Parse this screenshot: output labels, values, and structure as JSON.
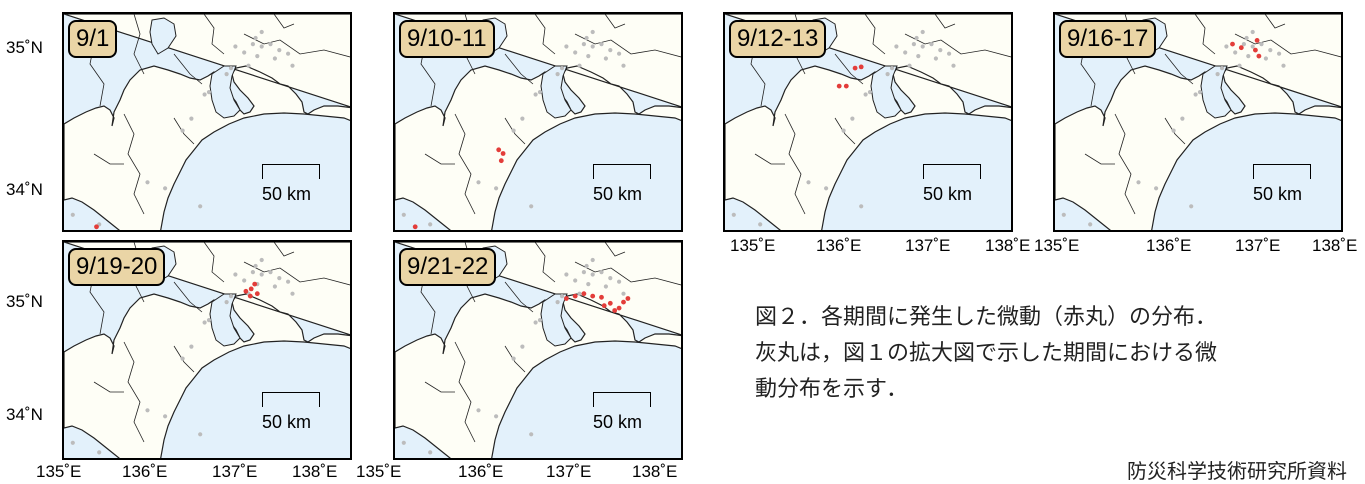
{
  "panels": [
    {
      "date": "9/1",
      "red": [
        [
          135.37,
          33.88
        ]
      ]
    },
    {
      "date": "9/10-11",
      "red": [
        [
          135.23,
          33.88
        ],
        [
          136.23,
          34.49
        ],
        [
          136.21,
          34.43
        ],
        [
          136.18,
          34.52
        ]
      ]
    },
    {
      "date": "9/12-13",
      "red": [
        [
          136.3,
          35.05
        ],
        [
          136.38,
          35.05
        ],
        [
          136.48,
          35.2
        ],
        [
          136.55,
          35.21
        ]
      ]
    },
    {
      "date": "9/16-17",
      "red": [
        [
          137.02,
          35.4
        ],
        [
          137.12,
          35.37
        ],
        [
          137.3,
          35.43
        ],
        [
          137.28,
          35.35
        ],
        [
          137.32,
          35.3
        ]
      ]
    },
    {
      "date": "9/19-20",
      "red": [
        [
          137.07,
          35.24
        ],
        [
          137.12,
          35.2
        ],
        [
          137.17,
          35.3
        ],
        [
          137.2,
          35.22
        ],
        [
          137.13,
          35.26
        ]
      ]
    },
    {
      "date": "9/21-22",
      "red": [
        [
          136.95,
          35.18
        ],
        [
          137.05,
          35.2
        ],
        [
          137.15,
          35.22
        ],
        [
          137.25,
          35.2
        ],
        [
          137.35,
          35.19
        ],
        [
          137.45,
          35.14
        ],
        [
          137.55,
          35.1
        ],
        [
          137.6,
          35.15
        ],
        [
          137.5,
          35.08
        ],
        [
          137.38,
          35.12
        ],
        [
          137.65,
          35.18
        ]
      ]
    }
  ],
  "background_tremors": [
    [
      136.95,
      35.38
    ],
    [
      137.05,
      35.33
    ],
    [
      137.15,
      35.4
    ],
    [
      137.25,
      35.38
    ],
    [
      137.35,
      35.4
    ],
    [
      137.45,
      35.35
    ],
    [
      137.55,
      35.32
    ],
    [
      137.6,
      35.22
    ],
    [
      137.4,
      35.28
    ],
    [
      137.2,
      35.3
    ],
    [
      137.1,
      35.22
    ],
    [
      136.9,
      35.2
    ],
    [
      136.85,
      35.15
    ],
    [
      136.35,
      34.68
    ],
    [
      136.45,
      34.78
    ],
    [
      136.6,
      34.98
    ],
    [
      136.65,
      35.0
    ],
    [
      135.95,
      34.25
    ],
    [
      135.4,
      33.9
    ],
    [
      135.1,
      33.98
    ],
    [
      136.15,
      34.2
    ],
    [
      136.55,
      34.05
    ],
    [
      137.25,
      35.5
    ],
    [
      137.18,
      35.45
    ]
  ],
  "map": {
    "lon_range": [
      135.0,
      138.3
    ],
    "lat_range": [
      33.82,
      35.65
    ]
  },
  "scale_bar": "50 km",
  "lat_labels": [
    "35˚N",
    "34˚N"
  ],
  "lon_labels": [
    "135˚E",
    "136˚E",
    "137˚E",
    "138˚E"
  ],
  "colors": {
    "sea": "#e3f1fb",
    "land": "#fefef6",
    "tremor": "#e33d3a",
    "background": "#bcbcbc",
    "badge": "#ead5a6"
  },
  "caption_line1": "図２．各期間に発生した微動（赤丸）の分布．",
  "caption_line2": "灰丸は，図１の拡大図で示した期間における微",
  "caption_line3": "動分布を示す．",
  "credit": "防災科学技術研究所資料"
}
